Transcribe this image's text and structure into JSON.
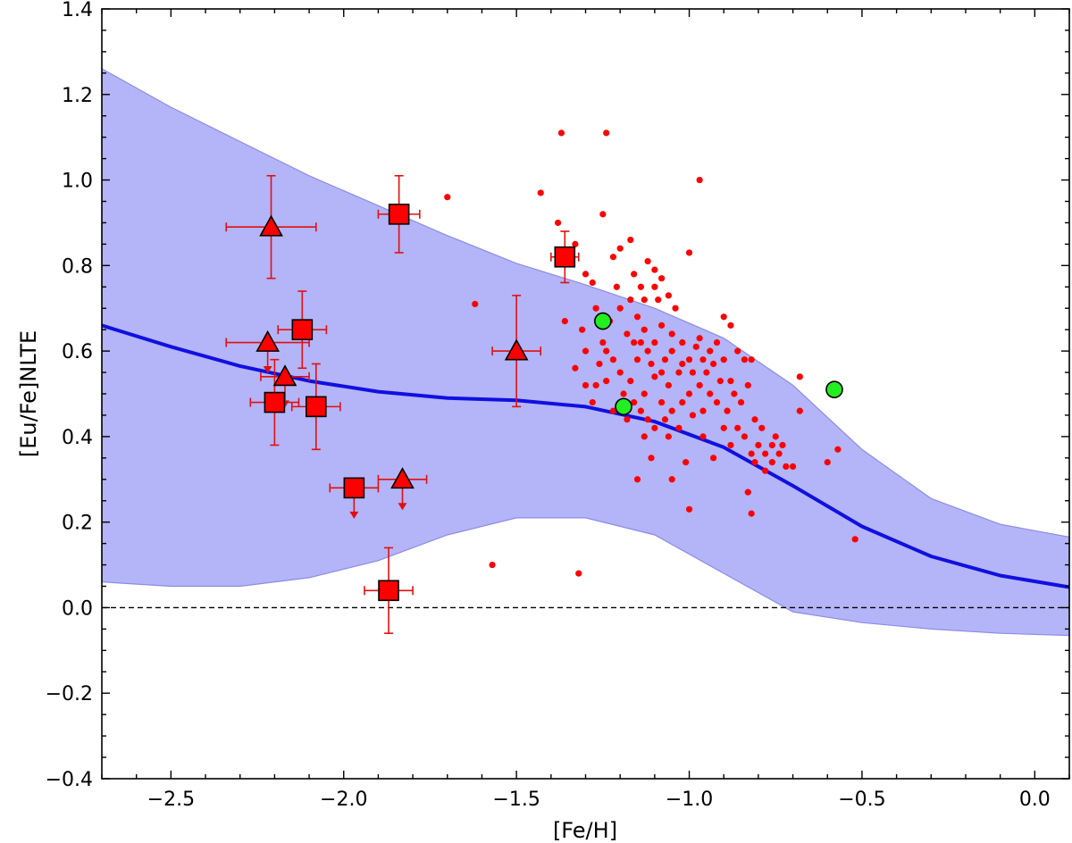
{
  "chart_data": {
    "type": "scatter",
    "xlabel": "[Fe/H]",
    "ylabel": "[Eu/Fe]NLTE",
    "xlim": [
      -2.7,
      0.1
    ],
    "ylim": [
      -0.4,
      1.4
    ],
    "x_ticks": [
      -2.5,
      -2.0,
      -1.5,
      -1.0,
      -0.5,
      0.0
    ],
    "x_tick_labels": [
      "−2.5",
      "−2.0",
      "−1.5",
      "−1.0",
      "−0.5",
      "0.0"
    ],
    "y_ticks": [
      -0.4,
      -0.2,
      0.0,
      0.2,
      0.4,
      0.6,
      0.8,
      1.0,
      1.2,
      1.4
    ],
    "y_tick_labels": [
      "−0.4",
      "−0.2",
      "0.0",
      "0.2",
      "0.4",
      "0.6",
      "0.8",
      "1.0",
      "1.2",
      "1.4"
    ],
    "reference_line": {
      "y": 0.0,
      "style": "dashed",
      "color": "#000000"
    },
    "colors": {
      "model_band": "#b4b4f8",
      "model_band_edge": "#8c8ce8",
      "model_line": "#1010e0",
      "red_points": "#ff0000",
      "squares": "#ff0000",
      "errorbars": "#e01010",
      "green_points": "#22ee22"
    },
    "model_band": {
      "x": [
        -2.7,
        -2.5,
        -2.3,
        -2.1,
        -1.9,
        -1.7,
        -1.5,
        -1.3,
        -1.1,
        -0.9,
        -0.7,
        -0.5,
        -0.3,
        -0.1,
        0.1
      ],
      "upper": [
        1.26,
        1.17,
        1.09,
        1.01,
        0.94,
        0.87,
        0.805,
        0.755,
        0.7,
        0.63,
        0.52,
        0.37,
        0.255,
        0.195,
        0.165
      ],
      "lower": [
        0.06,
        0.05,
        0.05,
        0.07,
        0.11,
        0.17,
        0.21,
        0.21,
        0.17,
        0.08,
        -0.01,
        -0.035,
        -0.05,
        -0.06,
        -0.065
      ]
    },
    "model_line": {
      "x": [
        -2.7,
        -2.5,
        -2.3,
        -2.1,
        -1.9,
        -1.7,
        -1.5,
        -1.3,
        -1.1,
        -0.9,
        -0.7,
        -0.5,
        -0.3,
        -0.1,
        0.1
      ],
      "y": [
        0.66,
        0.61,
        0.565,
        0.53,
        0.505,
        0.49,
        0.485,
        0.47,
        0.435,
        0.375,
        0.285,
        0.19,
        0.12,
        0.075,
        0.048
      ]
    },
    "squares": [
      {
        "x": -1.84,
        "y": 0.92,
        "xerr": 0.06,
        "yerr": 0.09,
        "upper_limit": false
      },
      {
        "x": -1.36,
        "y": 0.82,
        "xerr": 0.04,
        "yerr": 0.06,
        "upper_limit": false
      },
      {
        "x": -2.12,
        "y": 0.65,
        "xerr": 0.07,
        "yerr": 0.09,
        "upper_limit": false
      },
      {
        "x": -2.2,
        "y": 0.48,
        "xerr": 0.07,
        "yerr": 0.1,
        "upper_limit": false
      },
      {
        "x": -2.08,
        "y": 0.47,
        "xerr": 0.07,
        "yerr": 0.1,
        "upper_limit": false
      },
      {
        "x": -1.97,
        "y": 0.28,
        "xerr": 0.07,
        "yerr": 0.0,
        "upper_limit": true
      },
      {
        "x": -1.87,
        "y": 0.04,
        "xerr": 0.07,
        "yerr": 0.1,
        "upper_limit": false
      }
    ],
    "triangles": [
      {
        "x": -2.21,
        "y": 0.89,
        "xerr": 0.13,
        "yerr": 0.12,
        "upper_limit": false
      },
      {
        "x": -1.5,
        "y": 0.6,
        "xerr": 0.07,
        "yerr": 0.13,
        "upper_limit": false
      },
      {
        "x": -2.22,
        "y": 0.62,
        "xerr": 0.12,
        "yerr": 0.0,
        "upper_limit": true
      },
      {
        "x": -2.17,
        "y": 0.54,
        "xerr": 0.07,
        "yerr": 0.0,
        "upper_limit": true
      },
      {
        "x": -1.83,
        "y": 0.3,
        "xerr": 0.07,
        "yerr": 0.0,
        "upper_limit": true
      }
    ],
    "green_points": [
      {
        "x": -1.25,
        "y": 0.67
      },
      {
        "x": -1.19,
        "y": 0.47
      },
      {
        "x": -0.58,
        "y": 0.51
      }
    ],
    "red_points": [
      [
        -1.7,
        0.96
      ],
      [
        -1.62,
        0.71
      ],
      [
        -1.57,
        0.1
      ],
      [
        -1.43,
        0.97
      ],
      [
        -1.37,
        1.11
      ],
      [
        -1.32,
        0.08
      ],
      [
        -1.24,
        1.11
      ],
      [
        -1.25,
        0.92
      ],
      [
        -0.97,
        1.0
      ],
      [
        -1.38,
        0.9
      ],
      [
        -1.33,
        0.85
      ],
      [
        -1.3,
        0.78
      ],
      [
        -1.28,
        0.76
      ],
      [
        -1.36,
        0.67
      ],
      [
        -1.22,
        0.82
      ],
      [
        -1.2,
        0.84
      ],
      [
        -1.17,
        0.86
      ],
      [
        -1.12,
        0.81
      ],
      [
        -1.1,
        0.79
      ],
      [
        -1.08,
        0.77
      ],
      [
        -1.0,
        0.83
      ],
      [
        -1.14,
        0.75
      ],
      [
        -1.17,
        0.72
      ],
      [
        -1.21,
        0.75
      ],
      [
        -1.27,
        0.7
      ],
      [
        -1.23,
        0.67
      ],
      [
        -1.2,
        0.7
      ],
      [
        -1.15,
        0.68
      ],
      [
        -1.1,
        0.75
      ],
      [
        -1.06,
        0.73
      ],
      [
        -1.04,
        0.7
      ],
      [
        -1.18,
        0.64
      ],
      [
        -1.13,
        0.65
      ],
      [
        -1.08,
        0.66
      ],
      [
        -1.25,
        0.62
      ],
      [
        -1.3,
        0.6
      ],
      [
        -1.33,
        0.56
      ],
      [
        -1.3,
        0.52
      ],
      [
        -1.28,
        0.48
      ],
      [
        -1.22,
        0.58
      ],
      [
        -1.2,
        0.55
      ],
      [
        -1.17,
        0.53
      ],
      [
        -1.15,
        0.58
      ],
      [
        -1.12,
        0.6
      ],
      [
        -1.1,
        0.62
      ],
      [
        -1.07,
        0.58
      ],
      [
        -1.05,
        0.6
      ],
      [
        -1.02,
        0.62
      ],
      [
        -1.0,
        0.58
      ],
      [
        -0.98,
        0.61
      ],
      [
        -0.96,
        0.58
      ],
      [
        -0.94,
        0.6
      ],
      [
        -0.92,
        0.62
      ],
      [
        -0.9,
        0.68
      ],
      [
        -0.88,
        0.66
      ],
      [
        -0.86,
        0.6
      ],
      [
        -0.84,
        0.58
      ],
      [
        -0.82,
        0.58
      ],
      [
        -0.9,
        0.58
      ],
      [
        -0.95,
        0.55
      ],
      [
        -0.99,
        0.55
      ],
      [
        -1.03,
        0.55
      ],
      [
        -1.06,
        0.52
      ],
      [
        -1.1,
        0.54
      ],
      [
        -1.13,
        0.5
      ],
      [
        -1.16,
        0.48
      ],
      [
        -1.19,
        0.5
      ],
      [
        -1.22,
        0.46
      ],
      [
        -1.18,
        0.44
      ],
      [
        -1.14,
        0.46
      ],
      [
        -1.12,
        0.44
      ],
      [
        -1.08,
        0.48
      ],
      [
        -1.05,
        0.46
      ],
      [
        -1.03,
        0.42
      ],
      [
        -1.0,
        0.5
      ],
      [
        -0.97,
        0.52
      ],
      [
        -0.94,
        0.5
      ],
      [
        -0.92,
        0.48
      ],
      [
        -0.89,
        0.46
      ],
      [
        -0.87,
        0.5
      ],
      [
        -0.85,
        0.48
      ],
      [
        -0.83,
        0.52
      ],
      [
        -0.81,
        0.44
      ],
      [
        -0.79,
        0.42
      ],
      [
        -0.86,
        0.42
      ],
      [
        -0.9,
        0.42
      ],
      [
        -0.84,
        0.4
      ],
      [
        -0.8,
        0.38
      ],
      [
        -0.78,
        0.36
      ],
      [
        -0.76,
        0.34
      ],
      [
        -0.74,
        0.36
      ],
      [
        -0.72,
        0.33
      ],
      [
        -0.7,
        0.33
      ],
      [
        -0.76,
        0.38
      ],
      [
        -0.82,
        0.36
      ],
      [
        -0.78,
        0.32
      ],
      [
        -0.83,
        0.27
      ],
      [
        -0.82,
        0.22
      ],
      [
        -1.0,
        0.23
      ],
      [
        -1.01,
        0.34
      ],
      [
        -1.05,
        0.3
      ],
      [
        -1.11,
        0.35
      ],
      [
        -1.15,
        0.3
      ],
      [
        -0.93,
        0.35
      ],
      [
        -0.88,
        0.38
      ],
      [
        -0.68,
        0.46
      ],
      [
        -0.68,
        0.54
      ],
      [
        -0.6,
        0.34
      ],
      [
        -0.57,
        0.37
      ],
      [
        -0.52,
        0.16
      ],
      [
        -1.1,
        0.42
      ],
      [
        -1.06,
        0.4
      ],
      [
        -0.96,
        0.4
      ],
      [
        -0.99,
        0.45
      ],
      [
        -1.02,
        0.48
      ],
      [
        -1.08,
        0.55
      ],
      [
        -1.11,
        0.57
      ],
      [
        -1.24,
        0.6
      ],
      [
        -1.26,
        0.57
      ],
      [
        -1.24,
        0.53
      ],
      [
        -1.14,
        0.62
      ],
      [
        -1.16,
        0.62
      ],
      [
        -1.05,
        0.64
      ],
      [
        -1.02,
        0.57
      ],
      [
        -0.97,
        0.63
      ],
      [
        -0.93,
        0.57
      ],
      [
        -0.88,
        0.53
      ],
      [
        -0.91,
        0.53
      ],
      [
        -1.07,
        0.44
      ],
      [
        -1.13,
        0.4
      ],
      [
        -0.96,
        0.46
      ],
      [
        -0.81,
        0.34
      ],
      [
        -0.75,
        0.4
      ],
      [
        -0.73,
        0.38
      ],
      [
        -1.16,
        0.78
      ],
      [
        -1.13,
        0.72
      ],
      [
        -1.09,
        0.72
      ],
      [
        -1.27,
        0.52
      ],
      [
        -1.31,
        0.65
      ],
      [
        -1.19,
        0.46
      ]
    ]
  }
}
